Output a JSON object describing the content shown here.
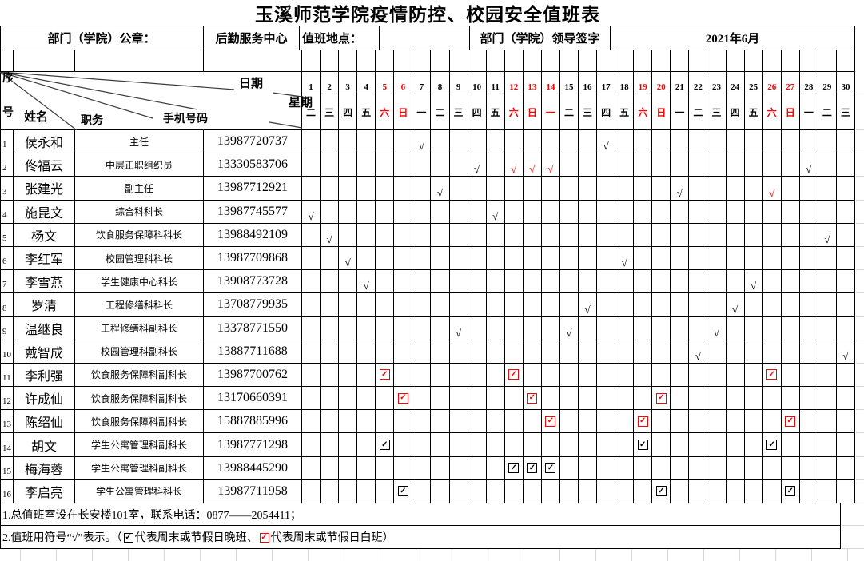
{
  "title": "玉溪师范学院疫情防控、校园安全值班表",
  "header": {
    "seal_label": "部门（学院）公章：",
    "department": "后勤服务中心",
    "location_label": "值班地点：",
    "signature_label": "部门（学院）领导签字",
    "month": "2021年6月"
  },
  "corner": {
    "seq_top": "序",
    "seq_bottom": "号",
    "name": "姓名",
    "position": "职务",
    "phone": "手机号码",
    "date": "日期",
    "week": "星期"
  },
  "calendar": {
    "days": [
      1,
      2,
      3,
      4,
      5,
      6,
      7,
      8,
      9,
      10,
      11,
      12,
      13,
      14,
      15,
      16,
      17,
      18,
      19,
      20,
      21,
      22,
      23,
      24,
      25,
      26,
      27,
      28,
      29,
      30
    ],
    "weekdays": [
      "二",
      "三",
      "四",
      "五",
      "六",
      "日",
      "一",
      "二",
      "三",
      "四",
      "五",
      "六",
      "日",
      "一",
      "二",
      "三",
      "四",
      "五",
      "六",
      "日",
      "一",
      "二",
      "三",
      "四",
      "五",
      "六",
      "日",
      "一",
      "二",
      "三"
    ],
    "red_days": [
      5,
      6,
      12,
      13,
      14,
      19,
      20,
      26,
      27
    ]
  },
  "people": [
    {
      "seq": "1",
      "name": "侯永和",
      "position": "主任",
      "phone": "13987720737",
      "checks": [
        7,
        17
      ],
      "red_checks": [],
      "boxes": [],
      "red_boxes": []
    },
    {
      "seq": "2",
      "name": "佟福云",
      "position": "中层正职组织员",
      "phone": "13330583706",
      "checks": [
        10,
        28
      ],
      "red_checks": [
        12,
        13,
        14
      ],
      "boxes": [],
      "red_boxes": []
    },
    {
      "seq": "3",
      "name": "张建光",
      "position": "副主任",
      "phone": "13987712921",
      "checks": [
        8,
        21
      ],
      "red_checks": [
        26
      ],
      "boxes": [],
      "red_boxes": []
    },
    {
      "seq": "4",
      "name": "施昆文",
      "position": "综合科科长",
      "phone": "13987745577",
      "checks": [
        1,
        11
      ],
      "red_checks": [],
      "boxes": [],
      "red_boxes": []
    },
    {
      "seq": "5",
      "name": "杨文",
      "position": "饮食服务保障科科长",
      "phone": "13988492109",
      "checks": [
        2,
        29
      ],
      "red_checks": [],
      "boxes": [],
      "red_boxes": []
    },
    {
      "seq": "6",
      "name": "李红军",
      "position": "校园管理科科长",
      "phone": "13987709868",
      "checks": [
        3,
        18
      ],
      "red_checks": [],
      "boxes": [],
      "red_boxes": []
    },
    {
      "seq": "7",
      "name": "李雪燕",
      "position": "学生健康中心科长",
      "phone": "13908773728",
      "checks": [
        4,
        25
      ],
      "red_checks": [],
      "boxes": [],
      "red_boxes": []
    },
    {
      "seq": "8",
      "name": "罗清",
      "position": "工程修缮科科长",
      "phone": "13708779935",
      "checks": [
        16,
        24
      ],
      "red_checks": [],
      "boxes": [],
      "red_boxes": []
    },
    {
      "seq": "9",
      "name": "温继良",
      "position": "工程修缮科副科长",
      "phone": "13378771550",
      "checks": [
        9,
        15,
        23
      ],
      "red_checks": [],
      "boxes": [],
      "red_boxes": []
    },
    {
      "seq": "10",
      "name": "戴智成",
      "position": "校园管理科副科长",
      "phone": "13887711688",
      "checks": [
        22,
        30
      ],
      "red_checks": [],
      "boxes": [],
      "red_boxes": []
    },
    {
      "seq": "11",
      "name": "李利强",
      "position": "饮食服务保障科副科长",
      "phone": "13987700762",
      "checks": [],
      "red_checks": [],
      "boxes": [],
      "red_boxes": [
        5,
        12,
        26
      ]
    },
    {
      "seq": "12",
      "name": "许成仙",
      "position": "饮食服务保障科副科长",
      "phone": "13170660391",
      "checks": [],
      "red_checks": [],
      "boxes": [],
      "red_boxes": [
        6,
        13,
        20
      ]
    },
    {
      "seq": "13",
      "name": "陈绍仙",
      "position": "饮食服务保障科副科长",
      "phone": "15887885996",
      "checks": [],
      "red_checks": [],
      "boxes": [],
      "red_boxes": [
        14,
        19,
        27
      ]
    },
    {
      "seq": "14",
      "name": "胡文",
      "position": "学生公寓管理科副科长",
      "phone": "13987771298",
      "checks": [],
      "red_checks": [],
      "boxes": [
        5,
        19,
        26
      ],
      "red_boxes": []
    },
    {
      "seq": "15",
      "name": "梅海蓉",
      "position": "学生公寓管理科副科长",
      "phone": "13988445290",
      "checks": [],
      "red_checks": [],
      "boxes": [
        12,
        13,
        14
      ],
      "red_boxes": []
    },
    {
      "seq": "16",
      "name": "李启亮",
      "position": "学生公寓管理科科长",
      "phone": "13987711958",
      "checks": [],
      "red_checks": [],
      "boxes": [
        6,
        20,
        27
      ],
      "red_boxes": []
    }
  ],
  "notes": {
    "line1": "1.总值班室设在长安楼101室，联系电话：0877——2054411；",
    "note2": {
      "pre": "2.值班用符号“√”表示。（",
      "mid": "代表周末或节假日晚班、",
      "end": "代表周末或节假日白班）"
    }
  },
  "symbols": {
    "check": "√",
    "box_check": "✓"
  },
  "colors": {
    "red": "#ff0000",
    "black": "#000000",
    "grid_gray": "#d6d6d6"
  }
}
